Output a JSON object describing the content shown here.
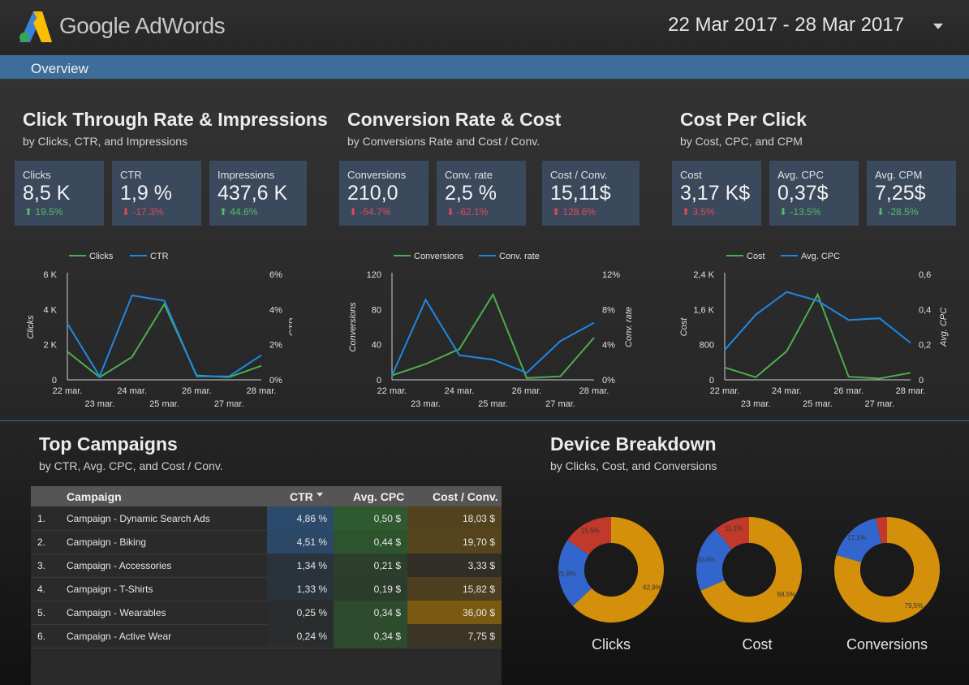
{
  "header": {
    "brand": "Google AdWords",
    "date_range": "22 Mar 2017 - 28 Mar 2017"
  },
  "nav": {
    "overview": "Overview"
  },
  "colors": {
    "green": "#4caf50",
    "blue": "#1e88e5",
    "orange": "#d4900a",
    "donut_red": "#c0392b",
    "donut_blue": "#3366cc",
    "donut_orange": "#d4900a",
    "ctr_fill": "#2b4a6c",
    "cpc_fill": "#2f5a2f",
    "cost_fill": "#7a5a10"
  },
  "sections": [
    {
      "title": "Click Through Rate & Impressions",
      "subtitle": "by Clicks, CTR, and Impressions"
    },
    {
      "title": "Conversion Rate & Cost",
      "subtitle": "by Conversions Rate and Cost / Conv."
    },
    {
      "title": "Cost Per Click",
      "subtitle": "by Cost, CPC, and CPM"
    }
  ],
  "scorecards": [
    {
      "label": "Clicks",
      "value": "8,5 K",
      "change": "19.5%",
      "direction": "up",
      "sentiment": "good"
    },
    {
      "label": "CTR",
      "value": "1,9 %",
      "change": "-17.3%",
      "direction": "down",
      "sentiment": "bad"
    },
    {
      "label": "Impressions",
      "value": "437,6 K",
      "change": "44.6%",
      "direction": "up",
      "sentiment": "good"
    },
    {
      "label": "Conversions",
      "value": "210,0",
      "change": "-54.7%",
      "direction": "down",
      "sentiment": "bad"
    },
    {
      "label": "Conv. rate",
      "value": "2,5 %",
      "change": "-62.1%",
      "direction": "down",
      "sentiment": "bad"
    },
    {
      "label": "Cost / Conv.",
      "value": "15,11$",
      "change": "128.6%",
      "direction": "up",
      "sentiment": "bad"
    },
    {
      "label": "Cost",
      "value": "3,17 K$",
      "change": "3.5%",
      "direction": "up",
      "sentiment": "bad"
    },
    {
      "label": "Avg. CPC",
      "value": "0,37$",
      "change": "-13.5%",
      "direction": "down",
      "sentiment": "good"
    },
    {
      "label": "Avg. CPM",
      "value": "7,25$",
      "change": "-28.5%",
      "direction": "down",
      "sentiment": "good"
    }
  ],
  "chart_data": [
    {
      "type": "line",
      "categories": [
        "22 mar.",
        "23 mar.",
        "24 mar.",
        "25 mar.",
        "26 mar.",
        "27 mar.",
        "28 mar."
      ],
      "series": [
        {
          "name": "Clicks",
          "axis": "left",
          "color": "#4caf50",
          "values": [
            1600,
            150,
            1300,
            4300,
            250,
            150,
            800
          ]
        },
        {
          "name": "CTR",
          "axis": "right",
          "color": "#1e88e5",
          "values": [
            3.2,
            0.2,
            4.8,
            4.5,
            0.2,
            0.2,
            1.4
          ]
        }
      ],
      "left_axis": {
        "label": "Clicks",
        "ticks": [
          "0",
          "2 K",
          "4 K",
          "6 K"
        ],
        "range": [
          0,
          6000
        ]
      },
      "right_axis": {
        "label": "CTR",
        "ticks": [
          "0%",
          "2%",
          "4%",
          "6%"
        ],
        "range": [
          0,
          6
        ]
      }
    },
    {
      "type": "line",
      "categories": [
        "22 mar.",
        "23 mar.",
        "24 mar.",
        "25 mar.",
        "26 mar.",
        "27 mar.",
        "28 mar."
      ],
      "series": [
        {
          "name": "Conversions",
          "axis": "left",
          "color": "#4caf50",
          "values": [
            5,
            18,
            35,
            97,
            2,
            4,
            48
          ]
        },
        {
          "name": "Conv. rate",
          "axis": "right",
          "color": "#1e88e5",
          "values": [
            0.5,
            9.1,
            2.8,
            2.3,
            0.8,
            4.4,
            6.5
          ]
        }
      ],
      "left_axis": {
        "label": "Conversions",
        "ticks": [
          "0",
          "40",
          "80",
          "120"
        ],
        "range": [
          0,
          120
        ]
      },
      "right_axis": {
        "label": "Conv. rate",
        "ticks": [
          "0%",
          "4%",
          "8%",
          "12%"
        ],
        "range": [
          0,
          12
        ]
      }
    },
    {
      "type": "line",
      "categories": [
        "22 mar.",
        "23 mar.",
        "24 mar.",
        "25 mar.",
        "26 mar.",
        "27 mar.",
        "28 mar."
      ],
      "series": [
        {
          "name": "Cost",
          "axis": "left",
          "color": "#4caf50",
          "values": [
            280,
            60,
            650,
            1940,
            70,
            30,
            160
          ]
        },
        {
          "name": "Avg. CPC",
          "axis": "right",
          "color": "#1e88e5",
          "values": [
            0.17,
            0.37,
            0.5,
            0.45,
            0.34,
            0.35,
            0.21
          ]
        }
      ],
      "left_axis": {
        "label": "Cost",
        "ticks": [
          "0",
          "800",
          "1,6 K",
          "2,4 K"
        ],
        "range": [
          0,
          2400
        ]
      },
      "right_axis": {
        "label": "Avg. CPC",
        "ticks": [
          "0",
          "0,2",
          "0,4",
          "0,6"
        ],
        "range": [
          0,
          0.6
        ]
      }
    },
    {
      "type": "pie",
      "title": "Clicks",
      "slices": [
        {
          "value": 62.9,
          "label": "62,9%",
          "color": "#d4900a"
        },
        {
          "value": 21.6,
          "label": "21,6%",
          "color": "#3366cc"
        },
        {
          "value": 15.5,
          "label": "15,5%",
          "color": "#c0392b"
        }
      ]
    },
    {
      "type": "pie",
      "title": "Cost",
      "slices": [
        {
          "value": 68.5,
          "label": "68,5%",
          "color": "#d4900a"
        },
        {
          "value": 20.4,
          "label": "20,4%",
          "color": "#3366cc"
        },
        {
          "value": 11.1,
          "label": "11,1%",
          "color": "#c0392b"
        }
      ]
    },
    {
      "type": "pie",
      "title": "Conversions",
      "slices": [
        {
          "value": 79.5,
          "label": "79,5%",
          "color": "#d4900a"
        },
        {
          "value": 17.1,
          "label": "17,1%",
          "color": "#3366cc"
        },
        {
          "value": 3.4,
          "label": "",
          "color": "#c0392b"
        }
      ]
    }
  ],
  "campaigns": {
    "title": "Top Campaigns",
    "subtitle": "by CTR, Avg. CPC, and Cost / Conv.",
    "headers": {
      "campaign": "Campaign",
      "ctr": "CTR",
      "cpc": "Avg. CPC",
      "cost_conv": "Cost / Conv."
    },
    "sort_icon": "sort-down-icon",
    "rows": [
      {
        "num": "1.",
        "name": "Campaign - Dynamic Search Ads",
        "ctr": "4,86 %",
        "cpc": "0,50 $",
        "cost_conv": "18,03 $",
        "ctr_v": 4.86,
        "cpc_v": 0.5,
        "cost_v": 18.03
      },
      {
        "num": "2.",
        "name": "Campaign - Biking",
        "ctr": "4,51 %",
        "cpc": "0,44 $",
        "cost_conv": "19,70 $",
        "ctr_v": 4.51,
        "cpc_v": 0.44,
        "cost_v": 19.7
      },
      {
        "num": "3.",
        "name": "Campaign - Accessories",
        "ctr": "1,34 %",
        "cpc": "0,21 $",
        "cost_conv": "3,33 $",
        "ctr_v": 1.34,
        "cpc_v": 0.21,
        "cost_v": 3.33
      },
      {
        "num": "4.",
        "name": "Campaign - T-Shirts",
        "ctr": "1,33 %",
        "cpc": "0,19 $",
        "cost_conv": "15,82 $",
        "ctr_v": 1.33,
        "cpc_v": 0.19,
        "cost_v": 15.82
      },
      {
        "num": "5.",
        "name": "Campaign - Wearables",
        "ctr": "0,25 %",
        "cpc": "0,34 $",
        "cost_conv": "36,00 $",
        "ctr_v": 0.25,
        "cpc_v": 0.34,
        "cost_v": 36.0
      },
      {
        "num": "6.",
        "name": "Campaign - Active Wear",
        "ctr": "0,24 %",
        "cpc": "0,34 $",
        "cost_conv": "7,75 $",
        "ctr_v": 0.24,
        "cpc_v": 0.34,
        "cost_v": 7.75
      }
    ]
  },
  "device": {
    "title": "Device Breakdown",
    "subtitle": "by Clicks, Cost, and Conversions"
  }
}
